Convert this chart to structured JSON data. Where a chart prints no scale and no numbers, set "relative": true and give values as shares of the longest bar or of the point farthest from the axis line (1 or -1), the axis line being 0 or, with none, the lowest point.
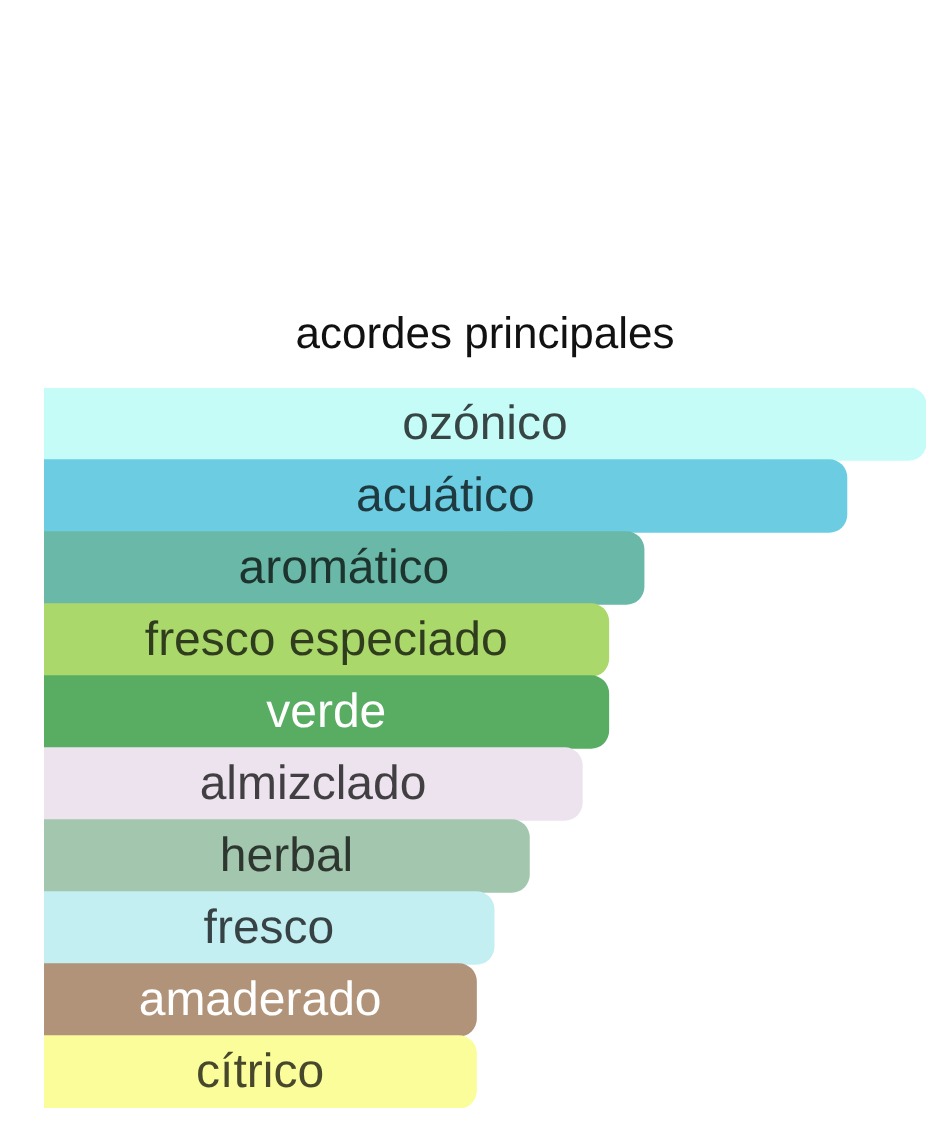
{
  "chart_data": {
    "type": "bar",
    "orientation": "horizontal",
    "relative": true,
    "title": "acordes principales",
    "categories": [
      "ozónico",
      "acuático",
      "aromático",
      "fresco especiado",
      "verde",
      "almizclado",
      "herbal",
      "fresco",
      "amaderado",
      "cítrico"
    ],
    "values": [
      1,
      0.91,
      0.68,
      0.64,
      0.64,
      0.61,
      0.55,
      0.51,
      0.49,
      0.49
    ],
    "colors": [
      "#c6fcf8",
      "#6ccde2",
      "#6ab8a7",
      "#aad86a",
      "#58ad63",
      "#ece3ef",
      "#a2c6ae",
      "#c3eef2",
      "#b09378",
      "#fbfd9b"
    ]
  }
}
